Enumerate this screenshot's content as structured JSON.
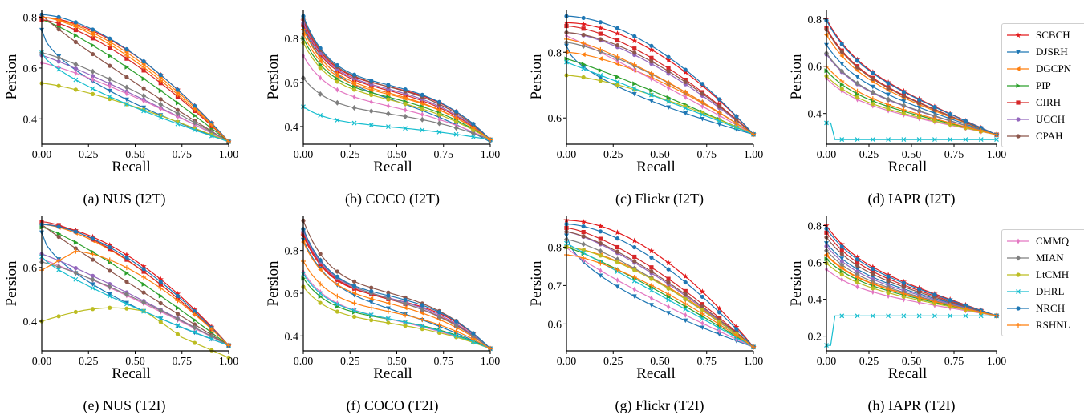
{
  "figure": {
    "captions": [
      "(a) NUS (I2T)",
      "(b) COCO (I2T)",
      "(c) Flickr (I2T)",
      "(d) IAPR (I2T)",
      "(e) NUS (T2I)",
      "(f) COCO (T2I)",
      "(g) Flickr (T2I)",
      "(h) IAPR (T2I)"
    ],
    "legend_top": [
      "SCBCH",
      "DJSRH",
      "DGCPN",
      "PIP",
      "CIRH",
      "UCCH",
      "CPAH"
    ],
    "legend_bottom": [
      "CMMQ",
      "MIAN",
      "LtCMH",
      "DHRL",
      "NRCH",
      "RSHNL"
    ]
  },
  "colors": {
    "SCBCH": "#e31a1c",
    "DJSRH": "#1f77b4",
    "DGCPN": "#ff7f0e",
    "PIP": "#2ca02c",
    "CIRH": "#d62728",
    "UCCH": "#9467bd",
    "CPAH": "#8c564b",
    "CMMQ": "#e377c2",
    "MIAN": "#7f7f7f",
    "LtCMH": "#bcbd22",
    "DHRL": "#17becf",
    "NRCH": "#1f77b4",
    "RSHNL": "#ff7f0e"
  },
  "marker_icons": {
    "SCBCH": "star",
    "DJSRH": "triangle-down",
    "DGCPN": "triangle-left",
    "PIP": "triangle-right",
    "CIRH": "square",
    "UCCH": "circle",
    "CPAH": "circle",
    "CMMQ": "thin-diamond",
    "MIAN": "diamond",
    "LtCMH": "circle",
    "DHRL": "x",
    "NRCH": "circle",
    "RSHNL": "plus"
  },
  "chart_data": [
    {
      "type": "line",
      "caption": "(a) NUS (I2T)",
      "xlabel": "Recall",
      "ylabel": "Persion",
      "xlim": [
        0,
        1
      ],
      "ylim": [
        0.3,
        0.83
      ],
      "xticks": [
        "0.00",
        "0.25",
        "0.50",
        "0.75",
        "1.00"
      ],
      "yticks": [
        "0.4",
        "0.6",
        "0.8"
      ],
      "yticks_values": [
        0.4,
        0.6,
        0.8
      ],
      "series": [
        {
          "name": "SCBCH",
          "start": 0.8,
          "end": 0.31,
          "shape": 1.7
        },
        {
          "name": "DJSRH",
          "start": 0.75,
          "end": 0.31,
          "shape": 0.6
        },
        {
          "name": "DGCPN",
          "start": 0.8,
          "end": 0.31,
          "shape": 1.6
        },
        {
          "name": "PIP",
          "start": 0.79,
          "end": 0.31,
          "shape": 1.2
        },
        {
          "name": "CIRH",
          "start": 0.79,
          "end": 0.31,
          "shape": 1.45
        },
        {
          "name": "UCCH",
          "start": 0.65,
          "end": 0.31,
          "shape": 1.1
        },
        {
          "name": "CPAH",
          "start": 0.81,
          "end": 0.31,
          "shape": 0.9
        },
        {
          "name": "CMMQ",
          "start": 0.62,
          "end": 0.31,
          "shape": 1.2
        },
        {
          "name": "MIAN",
          "start": 0.66,
          "end": 0.31,
          "shape": 1.2
        },
        {
          "name": "LtCMH",
          "start": 0.54,
          "end": 0.31,
          "shape": 1.3
        },
        {
          "name": "DHRL",
          "start": 0.66,
          "end": 0.31,
          "shape": 0.7
        },
        {
          "name": "NRCH",
          "start": 0.81,
          "end": 0.31,
          "shape": 1.65
        },
        {
          "name": "RSHNL",
          "start": 0.8,
          "end": 0.31,
          "shape": 1.5
        }
      ]
    },
    {
      "type": "line",
      "caption": "(b) COCO (I2T)",
      "xlabel": "Recall",
      "ylabel": "Persion",
      "xlim": [
        0,
        1
      ],
      "ylim": [
        0.32,
        0.93
      ],
      "xticks": [
        "0.00",
        "0.25",
        "0.50",
        "0.75",
        "1.00"
      ],
      "yticks": [
        "0.4",
        "0.6",
        "0.8"
      ],
      "yticks_values": [
        0.4,
        0.6,
        0.8
      ],
      "series": [
        {
          "name": "SCBCH",
          "start": 0.88,
          "end": 0.34,
          "shape": 1.45,
          "kind": "sshape"
        },
        {
          "name": "DJSRH",
          "start": 0.85,
          "end": 0.33,
          "shape": 0.8,
          "kind": "sshape"
        },
        {
          "name": "DGCPN",
          "start": 0.82,
          "end": 0.34,
          "shape": 1.2,
          "kind": "sshape"
        },
        {
          "name": "PIP",
          "start": 0.8,
          "end": 0.34,
          "shape": 1.1,
          "kind": "sshape"
        },
        {
          "name": "CIRH",
          "start": 0.86,
          "end": 0.34,
          "shape": 1.2,
          "kind": "sshape"
        },
        {
          "name": "UCCH",
          "start": 0.87,
          "end": 0.34,
          "shape": 1.25,
          "kind": "sshape"
        },
        {
          "name": "CPAH",
          "start": 0.89,
          "end": 0.34,
          "shape": 1.3,
          "kind": "sshape"
        },
        {
          "name": "CMMQ",
          "start": 0.72,
          "end": 0.34,
          "shape": 0.95,
          "kind": "sshape"
        },
        {
          "name": "MIAN",
          "start": 0.62,
          "end": 0.34,
          "shape": 1.1,
          "kind": "sshape"
        },
        {
          "name": "LtCMH",
          "start": 0.78,
          "end": 0.34,
          "shape": 1.05,
          "kind": "sshape"
        },
        {
          "name": "DHRL",
          "start": 0.49,
          "end": 0.34,
          "shape": 0.9,
          "kind": "sshape"
        },
        {
          "name": "NRCH",
          "start": 0.9,
          "end": 0.34,
          "shape": 1.4,
          "kind": "sshape"
        },
        {
          "name": "RSHNL",
          "start": 0.84,
          "end": 0.34,
          "shape": 1.15,
          "kind": "sshape"
        }
      ]
    },
    {
      "type": "line",
      "caption": "(c) Flickr (I2T)",
      "xlabel": "Recall",
      "ylabel": "Persion",
      "xlim": [
        0,
        1
      ],
      "ylim": [
        0.52,
        0.93
      ],
      "xticks": [
        "0.00",
        "0.25",
        "0.50",
        "0.75",
        "1.00"
      ],
      "yticks": [
        "0.6",
        "0.8"
      ],
      "yticks_values": [
        0.6,
        0.8
      ],
      "series": [
        {
          "name": "SCBCH",
          "start": 0.89,
          "end": 0.55,
          "shape": 1.8
        },
        {
          "name": "DJSRH",
          "start": 0.82,
          "end": 0.55,
          "shape": 0.6
        },
        {
          "name": "DGCPN",
          "start": 0.8,
          "end": 0.55,
          "shape": 1.5
        },
        {
          "name": "PIP",
          "start": 0.78,
          "end": 0.55,
          "shape": 1.1
        },
        {
          "name": "CIRH",
          "start": 0.88,
          "end": 0.55,
          "shape": 1.55
        },
        {
          "name": "UCCH",
          "start": 0.86,
          "end": 0.55,
          "shape": 1.5
        },
        {
          "name": "CPAH",
          "start": 0.86,
          "end": 0.55,
          "shape": 1.6
        },
        {
          "name": "CMMQ",
          "start": 0.85,
          "end": 0.55,
          "shape": 1.05
        },
        {
          "name": "MIAN",
          "start": 0.83,
          "end": 0.55,
          "shape": 1.35
        },
        {
          "name": "LtCMH",
          "start": 0.73,
          "end": 0.55,
          "shape": 1.4
        },
        {
          "name": "DHRL",
          "start": 0.77,
          "end": 0.55,
          "shape": 1.0
        },
        {
          "name": "NRCH",
          "start": 0.91,
          "end": 0.55,
          "shape": 1.75
        },
        {
          "name": "RSHNL",
          "start": 0.84,
          "end": 0.55,
          "shape": 1.3
        }
      ]
    },
    {
      "type": "line",
      "caption": "(d) IAPR (I2T)",
      "xlabel": "Recall",
      "ylabel": "Persion",
      "xlim": [
        0,
        1
      ],
      "ylim": [
        0.27,
        0.84
      ],
      "xticks": [
        "0.00",
        "0.25",
        "0.50",
        "0.75",
        "1.00"
      ],
      "yticks": [
        "0.4",
        "0.6",
        "0.8"
      ],
      "yticks_values": [
        0.4,
        0.6,
        0.8
      ],
      "series": [
        {
          "name": "SCBCH",
          "start": 0.8,
          "end": 0.31,
          "shape": 1.0,
          "kind": "drop"
        },
        {
          "name": "DJSRH",
          "start": 0.7,
          "end": 0.31,
          "shape": 0.9,
          "kind": "drop"
        },
        {
          "name": "DGCPN",
          "start": 0.75,
          "end": 0.31,
          "shape": 0.85,
          "kind": "drop"
        },
        {
          "name": "PIP",
          "start": 0.6,
          "end": 0.31,
          "shape": 0.75,
          "kind": "drop"
        },
        {
          "name": "CIRH",
          "start": 0.78,
          "end": 0.31,
          "shape": 0.85,
          "kind": "drop"
        },
        {
          "name": "UCCH",
          "start": 0.69,
          "end": 0.31,
          "shape": 0.6,
          "kind": "drop"
        },
        {
          "name": "CPAH",
          "start": 0.78,
          "end": 0.31,
          "shape": 0.8,
          "kind": "drop"
        },
        {
          "name": "CMMQ",
          "start": 0.58,
          "end": 0.31,
          "shape": 0.55,
          "kind": "drop"
        },
        {
          "name": "MIAN",
          "start": 0.69,
          "end": 0.31,
          "shape": 0.65,
          "kind": "drop"
        },
        {
          "name": "LtCMH",
          "start": 0.58,
          "end": 0.31,
          "shape": 0.7,
          "kind": "drop"
        },
        {
          "name": "DHRL",
          "start": 0.36,
          "end": 0.29,
          "shape": 0.0,
          "kind": "flat"
        },
        {
          "name": "NRCH",
          "start": 0.8,
          "end": 0.31,
          "shape": 0.95,
          "kind": "drop"
        },
        {
          "name": "RSHNL",
          "start": 0.62,
          "end": 0.31,
          "shape": 0.75,
          "kind": "drop"
        }
      ]
    },
    {
      "type": "line",
      "caption": "(e) NUS (T2I)",
      "xlabel": "Recall",
      "ylabel": "Persion",
      "xlim": [
        0,
        1
      ],
      "ylim": [
        0.29,
        0.79
      ],
      "xticks": [
        "0.00",
        "0.25",
        "0.50",
        "0.75",
        "1.00"
      ],
      "yticks": [
        "0.4",
        "0.6"
      ],
      "yticks_values": [
        0.4,
        0.6
      ],
      "series": [
        {
          "name": "SCBCH",
          "start": 0.76,
          "end": 0.31,
          "shape": 1.75
        },
        {
          "name": "DJSRH",
          "start": 0.73,
          "end": 0.31,
          "shape": 0.6
        },
        {
          "name": "DGCPN",
          "start": 0.76,
          "end": 0.31,
          "shape": 1.55
        },
        {
          "name": "PIP",
          "start": 0.75,
          "end": 0.31,
          "shape": 1.2
        },
        {
          "name": "CIRH",
          "start": 0.77,
          "end": 0.31,
          "shape": 1.5
        },
        {
          "name": "UCCH",
          "start": 0.65,
          "end": 0.31,
          "shape": 1.1
        },
        {
          "name": "CPAH",
          "start": 0.76,
          "end": 0.31,
          "shape": 0.95
        },
        {
          "name": "CMMQ",
          "start": 0.63,
          "end": 0.31,
          "shape": 1.1
        },
        {
          "name": "MIAN",
          "start": 0.62,
          "end": 0.31,
          "shape": 1.2
        },
        {
          "name": "LtCMH",
          "start": 0.4,
          "end": 0.31,
          "shape": 0.0,
          "kind": "hump"
        },
        {
          "name": "DHRL",
          "start": 0.64,
          "end": 0.31,
          "shape": 0.8
        },
        {
          "name": "NRCH",
          "start": 0.76,
          "end": 0.31,
          "shape": 1.65
        },
        {
          "name": "RSHNL",
          "start": 0.59,
          "end": 0.31,
          "shape": 1.5,
          "kind": "rise"
        }
      ]
    },
    {
      "type": "line",
      "caption": "(f) COCO (T2I)",
      "xlabel": "Recall",
      "ylabel": "Persion",
      "xlim": [
        0,
        1
      ],
      "ylim": [
        0.33,
        0.96
      ],
      "xticks": [
        "0.00",
        "0.25",
        "0.50",
        "0.75",
        "1.00"
      ],
      "yticks": [
        "0.4",
        "0.6",
        "0.8"
      ],
      "yticks_values": [
        0.4,
        0.6,
        0.8
      ],
      "series": [
        {
          "name": "SCBCH",
          "start": 0.87,
          "end": 0.34,
          "shape": 1.45,
          "kind": "sshape"
        },
        {
          "name": "DJSRH",
          "start": 0.85,
          "end": 0.34,
          "shape": 0.75,
          "kind": "sshape"
        },
        {
          "name": "DGCPN",
          "start": 0.84,
          "end": 0.34,
          "shape": 1.15,
          "kind": "sshape"
        },
        {
          "name": "PIP",
          "start": 0.67,
          "end": 0.34,
          "shape": 1.1,
          "kind": "sshape"
        },
        {
          "name": "CIRH",
          "start": 0.88,
          "end": 0.34,
          "shape": 1.2,
          "kind": "sshape"
        },
        {
          "name": "UCCH",
          "start": 0.89,
          "end": 0.34,
          "shape": 1.25,
          "kind": "sshape"
        },
        {
          "name": "CPAH",
          "start": 0.94,
          "end": 0.34,
          "shape": 1.3,
          "kind": "sshape"
        },
        {
          "name": "CMMQ",
          "start": 0.7,
          "end": 0.34,
          "shape": 0.85,
          "kind": "sshape"
        },
        {
          "name": "MIAN",
          "start": 0.9,
          "end": 0.34,
          "shape": 1.1,
          "kind": "sshape"
        },
        {
          "name": "LtCMH",
          "start": 0.63,
          "end": 0.34,
          "shape": 1.05,
          "kind": "sshape"
        },
        {
          "name": "DHRL",
          "start": 0.69,
          "end": 0.34,
          "shape": 0.95,
          "kind": "sshape"
        },
        {
          "name": "NRCH",
          "start": 0.9,
          "end": 0.34,
          "shape": 1.4,
          "kind": "sshape"
        },
        {
          "name": "RSHNL",
          "start": 0.75,
          "end": 0.34,
          "shape": 1.15,
          "kind": "sshape"
        }
      ]
    },
    {
      "type": "line",
      "caption": "(g) Flickr (T2I)",
      "xlabel": "Recall",
      "ylabel": "Persion",
      "xlim": [
        0,
        1
      ],
      "ylim": [
        0.53,
        0.88
      ],
      "xticks": [
        "0.00",
        "0.25",
        "0.50",
        "0.75",
        "1.00"
      ],
      "yticks": [
        "0.6",
        "0.7",
        "0.8"
      ],
      "yticks_values": [
        0.6,
        0.7,
        0.8
      ],
      "series": [
        {
          "name": "SCBCH",
          "start": 0.87,
          "end": 0.54,
          "shape": 1.8
        },
        {
          "name": "DJSRH",
          "start": 0.83,
          "end": 0.54,
          "shape": 0.6
        },
        {
          "name": "DGCPN",
          "start": 0.8,
          "end": 0.54,
          "shape": 1.5
        },
        {
          "name": "PIP",
          "start": 0.8,
          "end": 0.54,
          "shape": 1.15
        },
        {
          "name": "CIRH",
          "start": 0.85,
          "end": 0.54,
          "shape": 1.4
        },
        {
          "name": "UCCH",
          "start": 0.84,
          "end": 0.54,
          "shape": 1.3
        },
        {
          "name": "CPAH",
          "start": 0.84,
          "end": 0.54,
          "shape": 1.35
        },
        {
          "name": "CMMQ",
          "start": 0.8,
          "end": 0.54,
          "shape": 0.85
        },
        {
          "name": "MIAN",
          "start": 0.82,
          "end": 0.54,
          "shape": 1.3
        },
        {
          "name": "LtCMH",
          "start": 0.8,
          "end": 0.54,
          "shape": 1.45
        },
        {
          "name": "DHRL",
          "start": 0.81,
          "end": 0.54,
          "shape": 1.0
        },
        {
          "name": "NRCH",
          "start": 0.86,
          "end": 0.54,
          "shape": 1.65
        },
        {
          "name": "RSHNL",
          "start": 0.78,
          "end": 0.54,
          "shape": 1.4
        }
      ]
    },
    {
      "type": "line",
      "caption": "(h) IAPR (T2I)",
      "xlabel": "Recall",
      "ylabel": "Persion",
      "xlim": [
        0,
        1
      ],
      "ylim": [
        0.12,
        0.85
      ],
      "xticks": [
        "0.00",
        "0.25",
        "0.50",
        "0.75",
        "1.00"
      ],
      "yticks": [
        "0.2",
        "0.4",
        "0.6",
        "0.8"
      ],
      "yticks_values": [
        0.2,
        0.4,
        0.6,
        0.8
      ],
      "series": [
        {
          "name": "SCBCH",
          "start": 0.8,
          "end": 0.31,
          "shape": 1.0,
          "kind": "drop"
        },
        {
          "name": "DJSRH",
          "start": 0.72,
          "end": 0.31,
          "shape": 0.85,
          "kind": "drop"
        },
        {
          "name": "DGCPN",
          "start": 0.66,
          "end": 0.31,
          "shape": 0.8,
          "kind": "drop"
        },
        {
          "name": "PIP",
          "start": 0.64,
          "end": 0.31,
          "shape": 0.75,
          "kind": "drop"
        },
        {
          "name": "CIRH",
          "start": 0.78,
          "end": 0.31,
          "shape": 0.85,
          "kind": "drop"
        },
        {
          "name": "UCCH",
          "start": 0.72,
          "end": 0.31,
          "shape": 0.7,
          "kind": "drop"
        },
        {
          "name": "CPAH",
          "start": 0.76,
          "end": 0.31,
          "shape": 0.8,
          "kind": "drop"
        },
        {
          "name": "CMMQ",
          "start": 0.6,
          "end": 0.31,
          "shape": 0.5,
          "kind": "drop"
        },
        {
          "name": "MIAN",
          "start": 0.7,
          "end": 0.31,
          "shape": 0.65,
          "kind": "drop"
        },
        {
          "name": "LtCMH",
          "start": 0.62,
          "end": 0.31,
          "shape": 0.7,
          "kind": "drop"
        },
        {
          "name": "DHRL",
          "start": 0.15,
          "end": 0.31,
          "shape": 0.0,
          "kind": "jumpflat"
        },
        {
          "name": "NRCH",
          "start": 0.79,
          "end": 0.31,
          "shape": 0.95,
          "kind": "drop"
        },
        {
          "name": "RSHNL",
          "start": 0.66,
          "end": 0.31,
          "shape": 0.75,
          "kind": "drop"
        }
      ]
    }
  ]
}
